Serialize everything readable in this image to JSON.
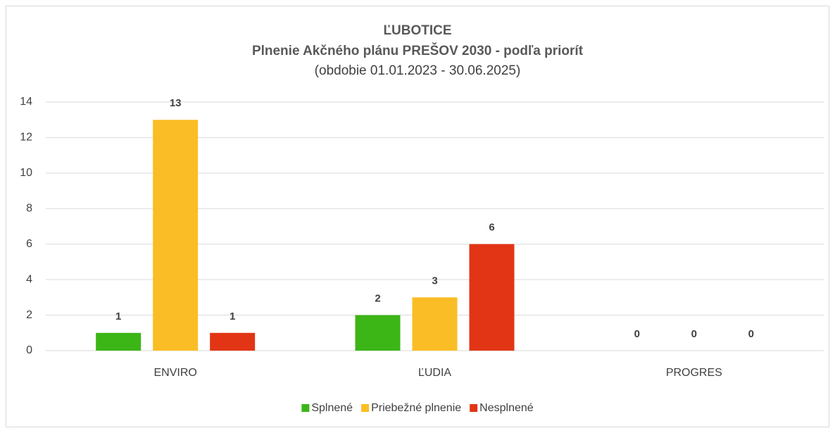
{
  "chart_data": {
    "type": "bar",
    "title": "ĽUBOTICE",
    "subtitle": "Plnenie Akčného plánu PREŠOV 2030 - podľa priorít",
    "period": "(obdobie 01.01.2023 - 30.06.2025)",
    "categories": [
      "ENVIRO",
      "ĽUDIA",
      "PROGRES"
    ],
    "series": [
      {
        "name": "Splnené",
        "color": "#3cb517",
        "values": [
          1,
          2,
          0
        ]
      },
      {
        "name": "Priebežné plnenie",
        "color": "#fbbd25",
        "values": [
          13,
          3,
          0
        ]
      },
      {
        "name": "Nesplnené",
        "color": "#e23515",
        "values": [
          1,
          6,
          0
        ]
      }
    ],
    "ylim": [
      0,
      14
    ],
    "yticks": [
      0,
      2,
      4,
      6,
      8,
      10,
      12,
      14
    ],
    "grid": true,
    "legend": "bottom"
  }
}
